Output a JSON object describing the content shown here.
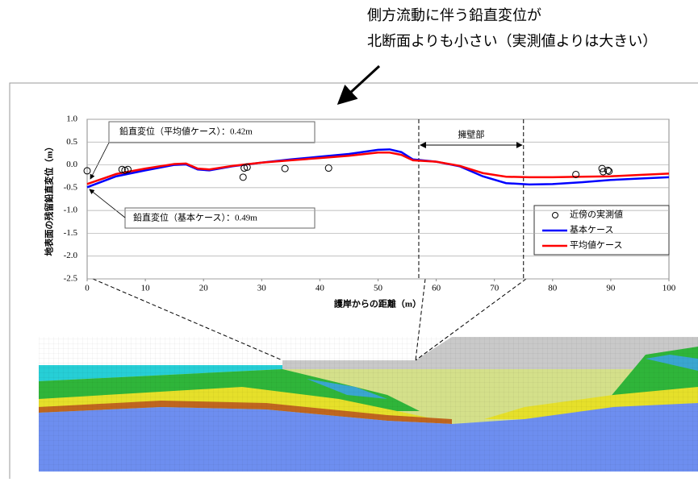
{
  "chart_data": {
    "type": "line",
    "annotations": [
      "側方流動に伴う鉛直変位が",
      "北断面よりも小さい（実測値よりは大きい）"
    ],
    "callouts": [
      "鉛直変位（平均値ケース）：0.42m",
      "鉛直変位（基本ケース）：0.49m"
    ],
    "region_label": "擁壁部",
    "region": [
      57,
      75
    ],
    "xlabel": "護岸からの距離（m）",
    "ylabel": "地表面の残留鉛直変位（m）",
    "xlim": [
      0,
      100
    ],
    "ylim": [
      -2.5,
      1.0
    ],
    "xticks": [
      0,
      10,
      20,
      30,
      40,
      50,
      60,
      70,
      80,
      90,
      100
    ],
    "yticks": [
      {
        "value": 1.0,
        "label": "1.0"
      },
      {
        "value": 0.5,
        "label": "0.5"
      },
      {
        "value": 0,
        "label": "0.0"
      },
      {
        "value": -0.5,
        "label": "-0.5"
      },
      {
        "value": -1.0,
        "label": "-1.0"
      },
      {
        "value": -1.5,
        "label": "-1.5"
      },
      {
        "value": -2.0,
        "label": "-2.0"
      },
      {
        "value": -2.5,
        "label": "-2.5"
      }
    ],
    "grid": true,
    "series": [
      {
        "name": "近傍の実測値",
        "style": "marker",
        "color": "#000000",
        "x": [
          0,
          6,
          6.5,
          7,
          26.8,
          27,
          27.5,
          34,
          41.5,
          84,
          88.5,
          88.7,
          89.5,
          89.7
        ],
        "values": [
          -0.13,
          -0.1,
          -0.12,
          -0.1,
          -0.27,
          -0.07,
          -0.05,
          -0.08,
          -0.07,
          -0.21,
          -0.08,
          -0.15,
          -0.12,
          -0.14
        ]
      },
      {
        "name": "基本ケース",
        "style": "line",
        "color": "#0000ff",
        "x": [
          0,
          5,
          10,
          15,
          17,
          19,
          21,
          25,
          30,
          35,
          40,
          45,
          50,
          52,
          54,
          56,
          60,
          64,
          68,
          72,
          76,
          80,
          85,
          90,
          95,
          100
        ],
        "values": [
          -0.49,
          -0.25,
          -0.12,
          0.0,
          0.01,
          -0.1,
          -0.12,
          -0.03,
          0.05,
          0.12,
          0.18,
          0.24,
          0.33,
          0.34,
          0.28,
          0.12,
          0.07,
          -0.03,
          -0.25,
          -0.4,
          -0.43,
          -0.42,
          -0.38,
          -0.33,
          -0.3,
          -0.27
        ]
      },
      {
        "name": "平均値ケース",
        "style": "line",
        "color": "#ff0000",
        "x": [
          0,
          5,
          10,
          15,
          17,
          19,
          21,
          25,
          30,
          35,
          40,
          45,
          50,
          52,
          54,
          56,
          60,
          64,
          68,
          72,
          76,
          80,
          85,
          90,
          95,
          100
        ],
        "values": [
          -0.42,
          -0.2,
          -0.08,
          0.02,
          0.03,
          -0.08,
          -0.1,
          -0.02,
          0.05,
          0.1,
          0.15,
          0.2,
          0.27,
          0.27,
          0.22,
          0.1,
          0.07,
          -0.02,
          -0.18,
          -0.26,
          -0.27,
          -0.27,
          -0.26,
          -0.25,
          -0.22,
          -0.19
        ]
      }
    ]
  }
}
